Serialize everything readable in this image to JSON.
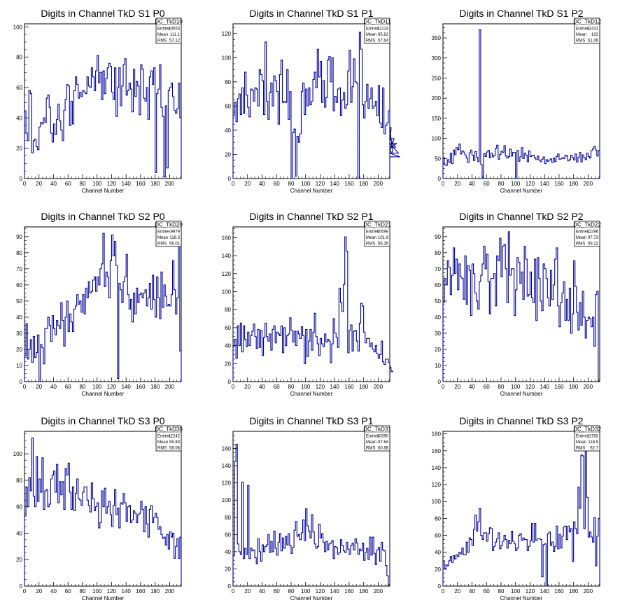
{
  "chart_data": [
    {
      "type": "histogram",
      "title": "Digits in Channel TkD S1 P0",
      "xlabel": "Channel Number",
      "ylabel": "",
      "xlim": [
        0,
        216
      ],
      "ylim": [
        0,
        102
      ],
      "xticks": [
        "0",
        "20",
        "40",
        "60",
        "80",
        "100",
        "120",
        "140",
        "160",
        "180",
        "200"
      ],
      "yticks": [
        "20",
        "40",
        "60",
        "80",
        "100"
      ],
      "bin_width": 2,
      "values": [
        44,
        30,
        25,
        58,
        56,
        17,
        25,
        26,
        21,
        19,
        34,
        37,
        36,
        40,
        37,
        53,
        55,
        47,
        30,
        24,
        36,
        29,
        39,
        49,
        38,
        32,
        25,
        45,
        52,
        62,
        61,
        35,
        51,
        36,
        58,
        67,
        62,
        53,
        57,
        54,
        58,
        57,
        56,
        67,
        61,
        60,
        73,
        67,
        58,
        71,
        81,
        63,
        70,
        52,
        71,
        56,
        66,
        73,
        76,
        74,
        57,
        52,
        73,
        41,
        60,
        73,
        48,
        61,
        75,
        79,
        55,
        58,
        63,
        59,
        44,
        72,
        54,
        64,
        61,
        42,
        75,
        72,
        53,
        51,
        60,
        39,
        67,
        71,
        62,
        73,
        4,
        56,
        59,
        75,
        47,
        41,
        1,
        48,
        7,
        58,
        60,
        63,
        54,
        45,
        43,
        46,
        63,
        40,
        1
      ],
      "stats": {
        "name": "DC_TkD10",
        "entries": "10553",
        "mean": "111.1",
        "rms": "57.12"
      },
      "series_color": "#000099"
    },
    {
      "type": "histogram",
      "title": "Digits in Channel TkD S1 P1",
      "xlabel": "Channel Number",
      "ylabel": "",
      "xlim": [
        0,
        216
      ],
      "ylim": [
        0,
        128
      ],
      "xticks": [
        "0",
        "20",
        "40",
        "60",
        "80",
        "100",
        "120",
        "140",
        "160",
        "180",
        "200"
      ],
      "yticks": [
        "20",
        "40",
        "60",
        "80",
        "100",
        "120"
      ],
      "bin_width": 2,
      "values": [
        52,
        63,
        47,
        66,
        70,
        53,
        75,
        54,
        88,
        69,
        59,
        51,
        74,
        73,
        64,
        75,
        74,
        60,
        90,
        86,
        81,
        53,
        113,
        64,
        49,
        71,
        79,
        60,
        85,
        81,
        72,
        45,
        86,
        98,
        63,
        64,
        63,
        90,
        49,
        72,
        0,
        38,
        41,
        2,
        35,
        30,
        37,
        72,
        79,
        53,
        74,
        60,
        75,
        61,
        64,
        82,
        88,
        75,
        107,
        84,
        97,
        63,
        81,
        59,
        67,
        98,
        101,
        80,
        100,
        56,
        68,
        63,
        74,
        75,
        52,
        65,
        71,
        58,
        61,
        89,
        106,
        63,
        76,
        99,
        80,
        79,
        0,
        121,
        107,
        61,
        50,
        64,
        78,
        58,
        66,
        75,
        58,
        60,
        64,
        52,
        77,
        46,
        42,
        75,
        37,
        44,
        46,
        56,
        32,
        42,
        22,
        33,
        26,
        29,
        21,
        18
      ],
      "stats": {
        "name": "DC_TkD11",
        "entries": "12114",
        "mean": "95.82",
        "rms": "57.64"
      },
      "series_color": "#000099"
    },
    {
      "type": "histogram",
      "title": "Digits in Channel TkD S1 P2",
      "xlabel": "Channel Number",
      "ylabel": "",
      "xlim": [
        0,
        216
      ],
      "ylim": [
        0,
        385
      ],
      "xticks": [
        "0",
        "20",
        "40",
        "60",
        "80",
        "100",
        "120",
        "140",
        "160",
        "180",
        "200"
      ],
      "yticks": [
        "50",
        "100",
        "150",
        "200",
        "250",
        "300",
        "350"
      ],
      "bin_width": 2,
      "values": [
        52,
        34,
        33,
        47,
        40,
        63,
        37,
        71,
        59,
        77,
        72,
        86,
        61,
        69,
        66,
        59,
        51,
        40,
        64,
        71,
        58,
        45,
        67,
        53,
        42,
        370,
        35,
        0,
        62,
        55,
        66,
        70,
        52,
        63,
        54,
        57,
        75,
        83,
        48,
        60,
        68,
        65,
        82,
        56,
        51,
        55,
        73,
        56,
        65,
        65,
        0,
        70,
        43,
        54,
        77,
        50,
        63,
        58,
        42,
        69,
        55,
        57,
        58,
        51,
        47,
        56,
        46,
        42,
        48,
        54,
        37,
        47,
        43,
        46,
        49,
        40,
        51,
        42,
        55,
        61,
        48,
        49,
        52,
        50,
        58,
        56,
        44,
        47,
        58,
        52,
        46,
        61,
        41,
        53,
        65,
        41,
        59,
        52,
        47,
        63,
        55,
        51,
        70,
        74,
        80,
        71,
        56,
        70,
        0
      ],
      "stats": {
        "name": "DC_TkD12",
        "entries": "12431",
        "mean": "102",
        "rms": "61.06"
      },
      "series_color": "#000099"
    },
    {
      "type": "histogram",
      "title": "Digits in Channel TkD S2 P0",
      "xlabel": "Channel Number",
      "ylabel": "",
      "xlim": [
        0,
        216
      ],
      "ylim": [
        0,
        96
      ],
      "xticks": [
        "0",
        "20",
        "40",
        "60",
        "80",
        "100",
        "120",
        "140",
        "160",
        "180",
        "200"
      ],
      "yticks": [
        "10",
        "20",
        "30",
        "40",
        "50",
        "60",
        "70",
        "80",
        "90"
      ],
      "bin_width": 2,
      "values": [
        16,
        36,
        14,
        20,
        26,
        12,
        28,
        15,
        18,
        29,
        0,
        23,
        21,
        11,
        33,
        33,
        40,
        35,
        25,
        41,
        33,
        29,
        38,
        35,
        33,
        49,
        38,
        22,
        40,
        50,
        31,
        42,
        37,
        31,
        45,
        47,
        54,
        48,
        50,
        43,
        54,
        42,
        58,
        52,
        62,
        55,
        56,
        63,
        65,
        56,
        65,
        60,
        70,
        73,
        92,
        59,
        68,
        65,
        52,
        75,
        91,
        78,
        87,
        72,
        2,
        61,
        57,
        49,
        62,
        65,
        79,
        54,
        45,
        51,
        37,
        55,
        42,
        58,
        49,
        54,
        55,
        52,
        55,
        57,
        47,
        52,
        61,
        45,
        66,
        51,
        40,
        65,
        52,
        39,
        68,
        46,
        60,
        53,
        47,
        48,
        47,
        54,
        75,
        57,
        42,
        52,
        89,
        19,
        20
      ],
      "stats": {
        "name": "DC_TkD20",
        "entries": "9979",
        "mean": "118.3",
        "rms": "56.01"
      },
      "series_color": "#000099"
    },
    {
      "type": "histogram",
      "title": "Digits in Channel TkD S2 P1",
      "xlabel": "Channel Number",
      "ylabel": "",
      "xlim": [
        0,
        216
      ],
      "ylim": [
        0,
        172
      ],
      "xticks": [
        "0",
        "20",
        "40",
        "60",
        "80",
        "100",
        "120",
        "140",
        "160",
        "180",
        "200"
      ],
      "yticks": [
        "20",
        "40",
        "60",
        "80",
        "100",
        "120",
        "140",
        "160"
      ],
      "bin_width": 2,
      "values": [
        39,
        47,
        26,
        62,
        40,
        65,
        33,
        62,
        47,
        39,
        55,
        40,
        51,
        56,
        64,
        50,
        37,
        58,
        38,
        57,
        29,
        49,
        65,
        50,
        45,
        53,
        35,
        58,
        62,
        43,
        55,
        53,
        51,
        62,
        32,
        60,
        40,
        51,
        53,
        71,
        57,
        44,
        56,
        40,
        56,
        53,
        48,
        61,
        51,
        20,
        58,
        28,
        45,
        58,
        35,
        55,
        76,
        50,
        42,
        29,
        48,
        42,
        39,
        53,
        44,
        47,
        45,
        21,
        42,
        70,
        54,
        49,
        38,
        104,
        88,
        78,
        108,
        161,
        145,
        32,
        57,
        63,
        34,
        56,
        57,
        45,
        34,
        65,
        87,
        84,
        55,
        43,
        48,
        48,
        39,
        43,
        36,
        33,
        40,
        31,
        26,
        30,
        45,
        22,
        19,
        25,
        25,
        21,
        18,
        15,
        11
      ],
      "stats": {
        "name": "DC_TkD21",
        "entries": "10599",
        "mean": "101.9",
        "rms": "56.35"
      },
      "series_color": "#000099"
    },
    {
      "type": "histogram",
      "title": "Digits in Channel TkD S2 P2",
      "xlabel": "Channel Number",
      "ylabel": "",
      "xlim": [
        0,
        216
      ],
      "ylim": [
        0,
        96
      ],
      "xticks": [
        "0",
        "20",
        "40",
        "60",
        "80",
        "100",
        "120",
        "140",
        "160",
        "180",
        "200"
      ],
      "yticks": [
        "10",
        "20",
        "30",
        "40",
        "50",
        "60",
        "70",
        "80",
        "90"
      ],
      "bin_width": 2,
      "values": [
        49,
        64,
        60,
        75,
        71,
        54,
        66,
        83,
        67,
        76,
        57,
        73,
        65,
        64,
        51,
        78,
        48,
        72,
        69,
        41,
        73,
        67,
        55,
        50,
        45,
        62,
        66,
        73,
        84,
        70,
        79,
        62,
        42,
        64,
        64,
        67,
        47,
        78,
        75,
        89,
        65,
        84,
        85,
        70,
        49,
        93,
        66,
        70,
        70,
        41,
        57,
        77,
        74,
        61,
        68,
        51,
        84,
        76,
        53,
        54,
        68,
        52,
        49,
        76,
        38,
        77,
        64,
        50,
        44,
        73,
        70,
        64,
        52,
        47,
        69,
        51,
        60,
        76,
        83,
        47,
        34,
        49,
        55,
        62,
        38,
        51,
        38,
        58,
        30,
        42,
        75,
        59,
        43,
        32,
        49,
        35,
        56,
        40,
        27,
        38,
        40,
        39,
        34,
        40,
        22,
        54,
        56
      ],
      "stats": {
        "name": "DC_TkD22",
        "entries": "12296",
        "mean": "97.73",
        "rms": "59.22"
      },
      "series_color": "#000099"
    },
    {
      "type": "histogram",
      "title": "Digits in Channel TkD S3 P0",
      "xlabel": "Channel Number",
      "ylabel": "",
      "xlim": [
        0,
        216
      ],
      "ylim": [
        0,
        117
      ],
      "xticks": [
        "0",
        "20",
        "40",
        "60",
        "80",
        "100",
        "120",
        "140",
        "160",
        "180",
        "200"
      ],
      "yticks": [
        "20",
        "40",
        "60",
        "80",
        "100"
      ],
      "bin_width": 2,
      "values": [
        53,
        75,
        60,
        82,
        72,
        112,
        68,
        60,
        98,
        64,
        81,
        71,
        97,
        58,
        72,
        73,
        60,
        62,
        81,
        84,
        87,
        71,
        92,
        63,
        79,
        69,
        79,
        58,
        89,
        84,
        93,
        71,
        58,
        75,
        57,
        70,
        81,
        66,
        65,
        61,
        71,
        75,
        75,
        65,
        61,
        56,
        78,
        66,
        57,
        60,
        63,
        44,
        48,
        72,
        60,
        74,
        55,
        60,
        64,
        54,
        45,
        61,
        73,
        54,
        59,
        44,
        63,
        62,
        70,
        63,
        49,
        60,
        61,
        48,
        50,
        57,
        55,
        48,
        54,
        55,
        64,
        58,
        41,
        60,
        47,
        37,
        58,
        61,
        48,
        52,
        55,
        52,
        43,
        45,
        39,
        36,
        37,
        31,
        39,
        28,
        41,
        37,
        40,
        21,
        30,
        36,
        21,
        37,
        19
      ],
      "stats": {
        "name": "DC_TkD30",
        "entries": "12242",
        "mean": "89.83",
        "rms": "58.06"
      },
      "series_color": "#000099"
    },
    {
      "type": "histogram",
      "title": "Digits in Channel TkD S3 P1",
      "xlabel": "Channel Number",
      "ylabel": "",
      "xlim": [
        0,
        216
      ],
      "ylim": [
        0,
        180
      ],
      "xticks": [
        "0",
        "20",
        "40",
        "60",
        "80",
        "100",
        "120",
        "140",
        "160",
        "180",
        "200"
      ],
      "yticks": [
        "20",
        "40",
        "60",
        "80",
        "100",
        "120",
        "140",
        "160"
      ],
      "bin_width": 2,
      "values": [
        36,
        145,
        165,
        49,
        40,
        37,
        121,
        32,
        44,
        37,
        117,
        32,
        44,
        41,
        42,
        33,
        26,
        55,
        40,
        29,
        48,
        40,
        46,
        48,
        60,
        39,
        52,
        40,
        64,
        44,
        36,
        51,
        61,
        41,
        56,
        44,
        58,
        48,
        61,
        47,
        38,
        45,
        65,
        75,
        58,
        60,
        54,
        62,
        77,
        53,
        90,
        70,
        64,
        56,
        83,
        63,
        49,
        44,
        46,
        72,
        56,
        61,
        51,
        40,
        52,
        42,
        49,
        50,
        53,
        32,
        46,
        45,
        37,
        39,
        54,
        47,
        41,
        39,
        51,
        43,
        37,
        47,
        50,
        42,
        55,
        50,
        37,
        43,
        41,
        50,
        30,
        39,
        44,
        31,
        57,
        36,
        57,
        38,
        25,
        42,
        45,
        29,
        51,
        42,
        41,
        24,
        12
      ],
      "stats": {
        "name": "DC_TkD31",
        "entries": "10390",
        "mean": "97.54",
        "rms": "60.88"
      },
      "series_color": "#000099"
    },
    {
      "type": "histogram",
      "title": "Digits in Channel TkD S3 P2",
      "xlabel": "Channel Number",
      "ylabel": "",
      "xlim": [
        0,
        216
      ],
      "ylim": [
        0,
        183
      ],
      "xticks": [
        "0",
        "20",
        "40",
        "60",
        "80",
        "100",
        "120",
        "140",
        "160",
        "180",
        "200"
      ],
      "yticks": [
        "20",
        "40",
        "60",
        "80",
        "100",
        "120",
        "140",
        "160",
        "180"
      ],
      "bin_width": 2,
      "values": [
        29,
        21,
        25,
        24,
        30,
        35,
        28,
        36,
        32,
        37,
        35,
        40,
        38,
        45,
        37,
        37,
        52,
        40,
        57,
        55,
        48,
        67,
        84,
        65,
        76,
        92,
        60,
        55,
        63,
        63,
        53,
        62,
        69,
        68,
        42,
        47,
        52,
        56,
        63,
        44,
        48,
        53,
        60,
        55,
        45,
        54,
        50,
        65,
        53,
        50,
        42,
        45,
        60,
        62,
        54,
        57,
        55,
        55,
        42,
        47,
        54,
        74,
        52,
        74,
        54,
        56,
        56,
        55,
        11,
        49,
        50,
        0,
        62,
        64,
        48,
        52,
        41,
        47,
        71,
        44,
        61,
        45,
        59,
        70,
        71,
        55,
        71,
        64,
        68,
        29,
        76,
        68,
        62,
        117,
        92,
        155,
        154,
        68,
        160,
        105,
        58,
        64,
        58,
        52,
        81,
        24,
        59,
        80,
        30
      ],
      "stats": {
        "name": "DC_TkD32",
        "entries": "11783",
        "mean": "118.9",
        "rms": "62.7"
      },
      "series_color": "#000099"
    }
  ]
}
